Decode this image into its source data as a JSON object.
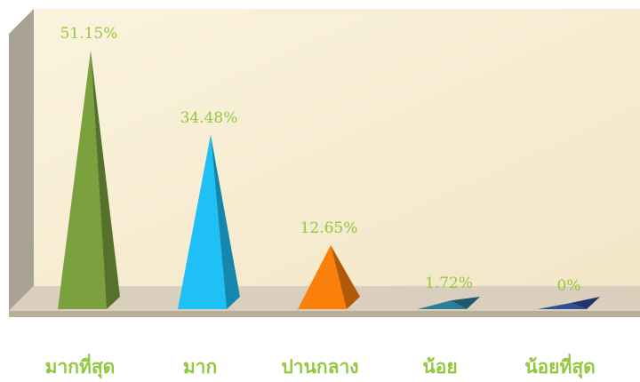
{
  "chart_data": {
    "type": "bar",
    "title": "",
    "xlabel": "",
    "ylabel": "",
    "ylim": [
      0,
      55
    ],
    "grid": false,
    "legend": "none",
    "categories": [
      "มากที่สุด",
      "มาก",
      "ปานกลาง",
      "น้อย",
      "น้อยที่สุด"
    ],
    "series": [
      {
        "values": [
          51.15,
          34.48,
          12.65,
          1.72,
          0
        ]
      }
    ],
    "data_labels": [
      "51.15%",
      "34.48%",
      "12.65%",
      "1.72%",
      "0%"
    ],
    "colors": {
      "label_green": "#92c83e",
      "bars": [
        "#7aa13d",
        "#1ec0f5",
        "#fb7f0b",
        "#2c7e98",
        "#2f4f97"
      ],
      "background_wall": "#f7ecd2",
      "floor": "#d9cfbc"
    }
  }
}
